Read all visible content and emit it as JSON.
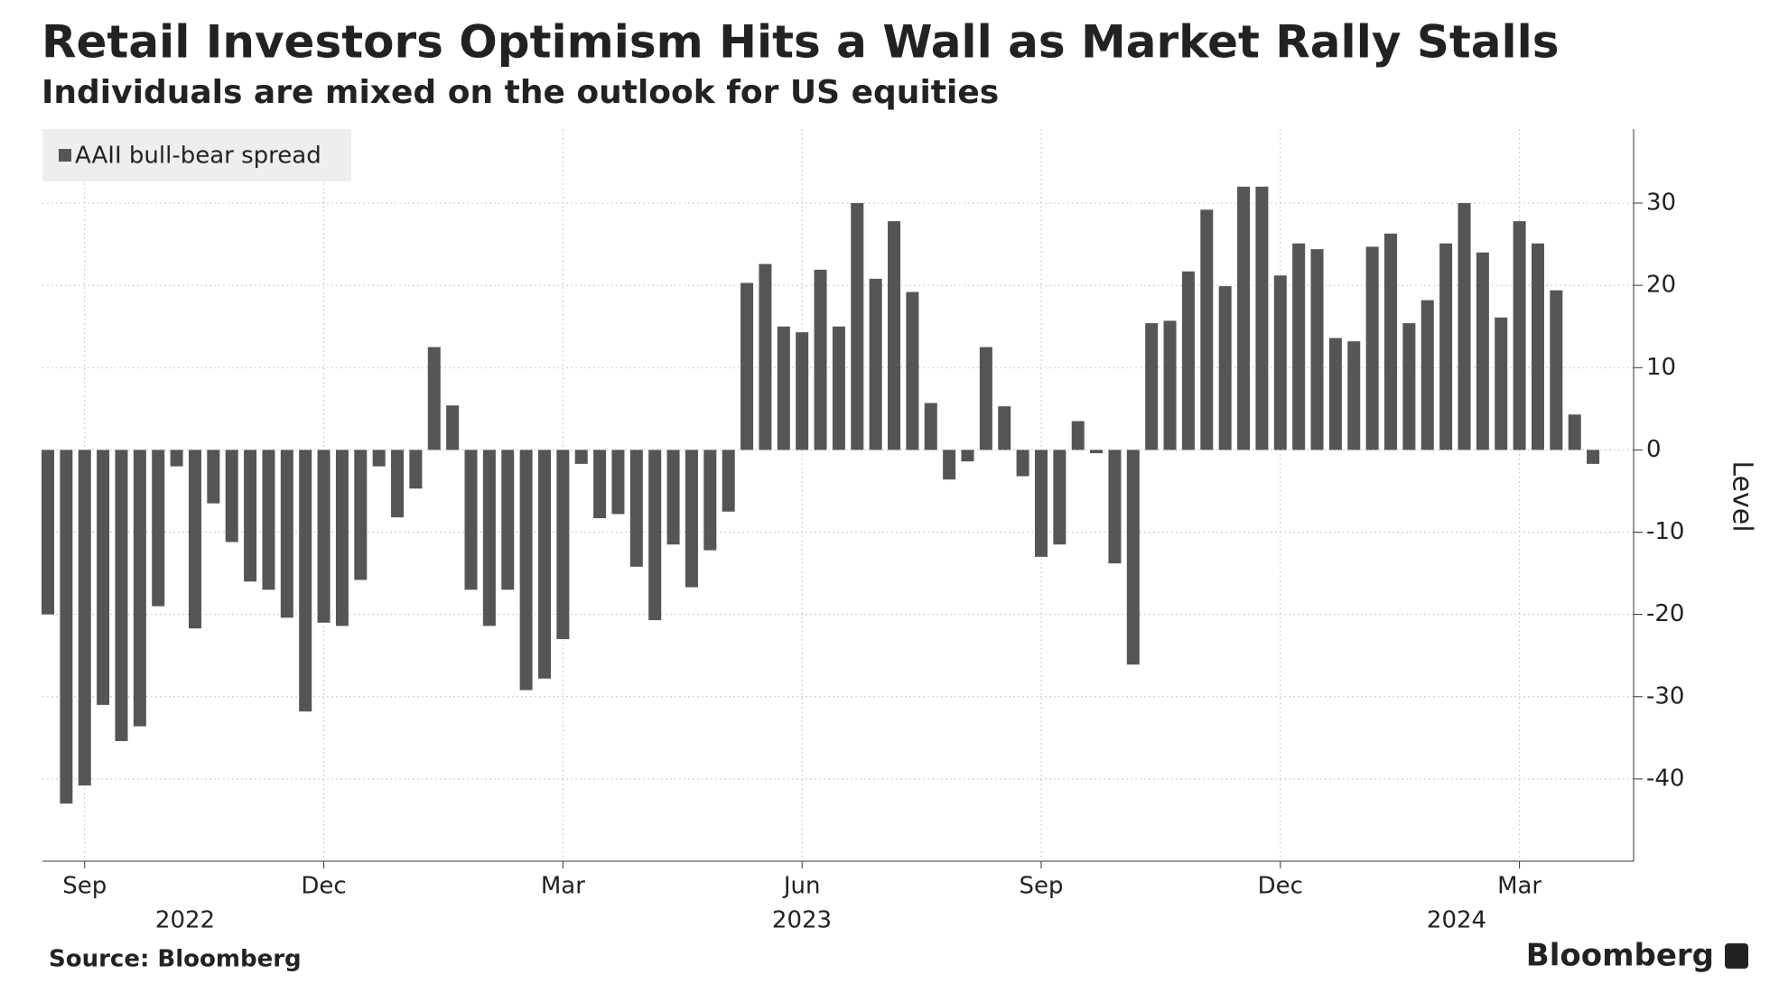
{
  "chart_data": {
    "type": "bar",
    "title": "Retail Investors Optimism Hits a Wall as Market Rally Stalls",
    "subtitle": "Individuals are mixed on the outlook for US equities",
    "y_label": "Level",
    "source": "Source: Bloomberg",
    "brand": "Bloomberg",
    "years": [
      "2022",
      "2023",
      "2024"
    ],
    "categories": [
      null,
      null,
      "Sep",
      null,
      null,
      null,
      null,
      null,
      null,
      null,
      null,
      null,
      null,
      null,
      null,
      "Dec",
      null,
      null,
      null,
      null,
      null,
      null,
      null,
      null,
      null,
      null,
      null,
      null,
      "Mar",
      null,
      null,
      null,
      null,
      null,
      null,
      null,
      null,
      null,
      null,
      null,
      null,
      "Jun",
      null,
      null,
      null,
      null,
      null,
      null,
      null,
      null,
      null,
      null,
      null,
      null,
      "Sep",
      null,
      null,
      null,
      null,
      null,
      null,
      null,
      null,
      null,
      null,
      null,
      null,
      "Dec",
      null,
      null,
      null,
      null,
      null,
      null,
      null,
      null,
      null,
      null,
      null,
      null,
      "Mar",
      null,
      null,
      null,
      null
    ],
    "series": [
      {
        "name": "AAII bull-bear spread",
        "color": "#555555",
        "values": [
          -20,
          -43,
          -40.8,
          -31,
          -35.4,
          -33.6,
          -19,
          -2,
          -21.7,
          -6.5,
          -11.2,
          -16,
          -17,
          -20.4,
          -31.8,
          -21,
          -21.4,
          -15.8,
          -2,
          -8.2,
          -4.7,
          12.5,
          5.4,
          -17,
          -21.4,
          -17,
          -29.2,
          -27.8,
          -23,
          -1.7,
          -8.3,
          -7.8,
          -14.2,
          -20.7,
          -11.5,
          -16.7,
          -12.2,
          -7.5,
          20.3,
          22.6,
          15,
          14.3,
          21.9,
          15,
          30,
          20.8,
          27.8,
          19.2,
          5.7,
          -3.6,
          -1.4,
          12.5,
          5.3,
          -3.2,
          -13,
          -11.5,
          3.5,
          -0.4,
          -13.8,
          -26.1,
          15.4,
          15.7,
          21.7,
          29.2,
          19.9,
          32,
          32,
          21.2,
          25.1,
          24.4,
          13.6,
          13.2,
          24.7,
          26.3,
          15.4,
          18.2,
          25.1,
          30,
          24,
          16.1,
          27.8,
          25.1,
          19.4,
          4.3,
          -1.7
        ]
      }
    ],
    "ylim": [
      -50,
      39
    ],
    "yticks": [
      -40,
      -30,
      -20,
      -10,
      0,
      10,
      20,
      30
    ],
    "grid": true,
    "legend": "top-left"
  }
}
